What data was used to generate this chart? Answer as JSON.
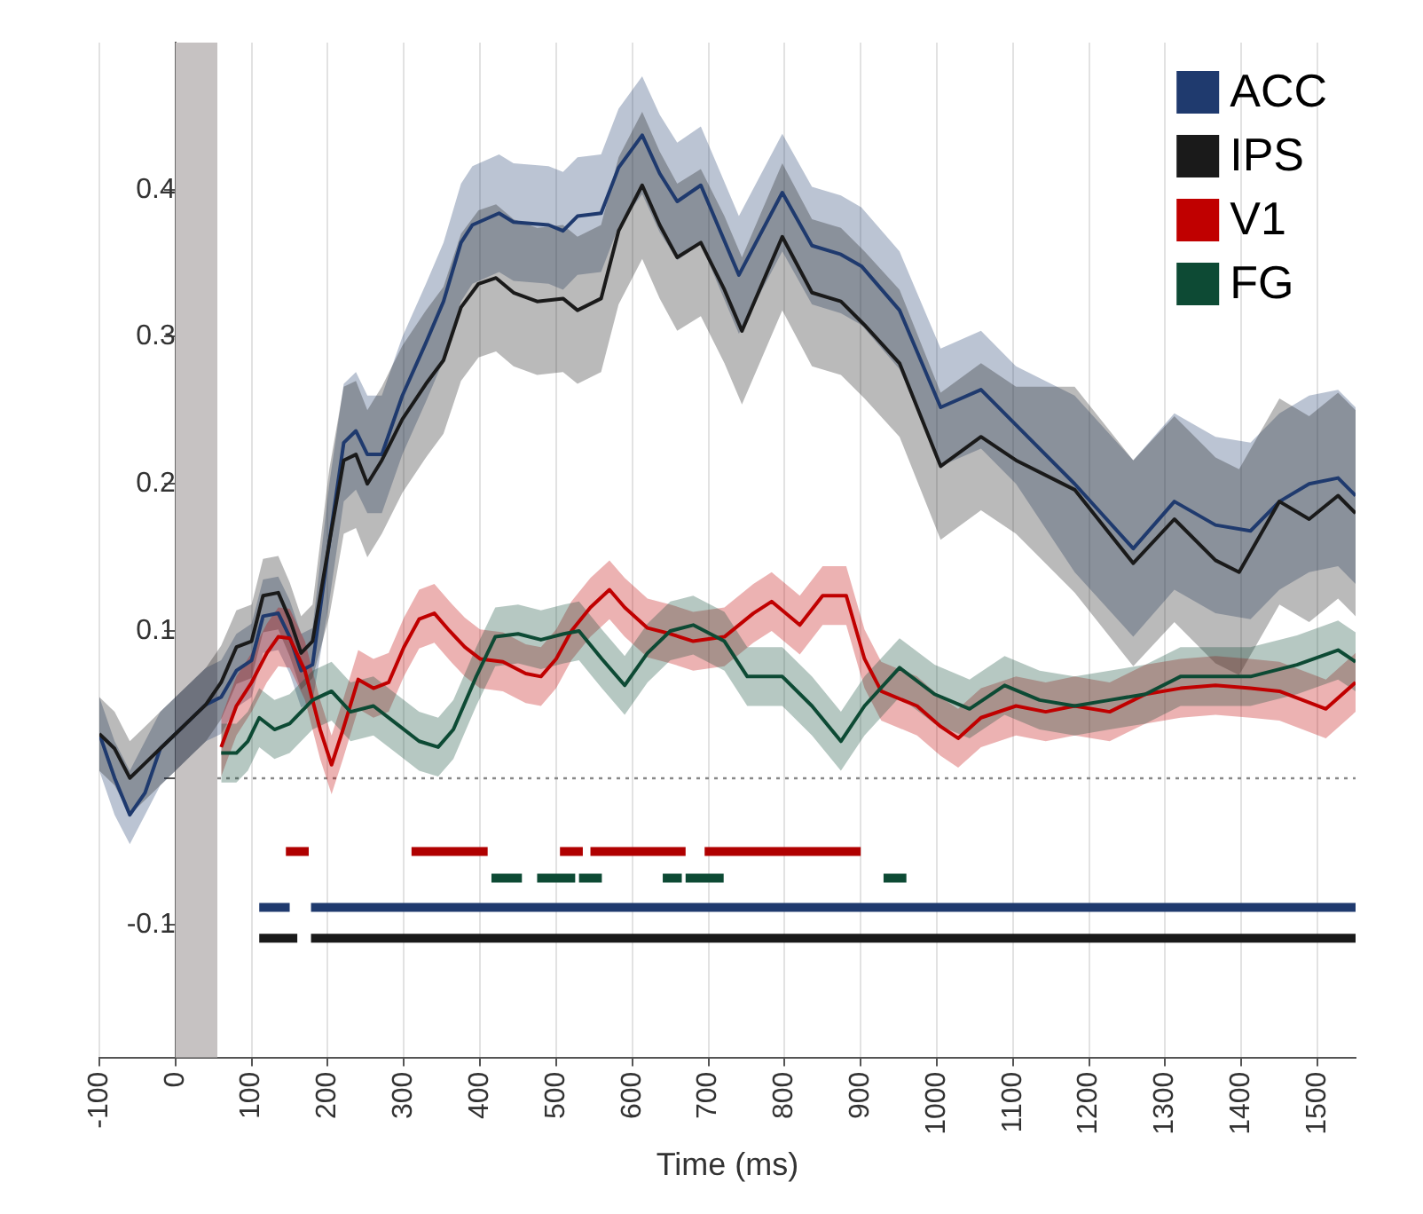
{
  "chart_data": {
    "type": "line",
    "xlabel": "Time (ms)",
    "xlim": [
      -100,
      1550
    ],
    "xticks": [
      -100,
      0,
      100,
      200,
      300,
      400,
      500,
      600,
      700,
      800,
      900,
      1000,
      1100,
      1200,
      1300,
      1400,
      1500
    ],
    "ylim": [
      -0.19,
      0.5
    ],
    "yticks": [
      -0.1,
      {
        "value": 0,
        "label": null
      },
      0.1,
      0.2,
      0.3,
      0.4
    ],
    "grid": "x",
    "legend": "top right",
    "marker": "none",
    "bands": [
      {
        "axis": "x",
        "from": 0,
        "to": 55,
        "color": "#c6c2c2"
      }
    ],
    "ref_lines": [
      {
        "axis": "y",
        "value": 0,
        "color": "#888888",
        "line_style": "dotted"
      }
    ],
    "series": [
      {
        "name": "ACC",
        "color": "#1f3a6e",
        "x": [
          -100,
          -80,
          -60,
          -40,
          -20,
          0,
          20,
          40,
          60,
          80,
          100,
          115,
          135,
          150,
          165,
          180,
          202,
          221,
          237,
          252,
          271,
          298,
          329,
          352,
          375,
          390,
          425,
          444,
          490,
          509,
          528,
          559,
          582,
          613,
          636,
          659,
          690,
          740,
          797,
          836,
          874,
          901,
          951,
          1005,
          1058,
          1104,
          1181,
          1258,
          1312,
          1366,
          1412,
          1450,
          1489,
          1527,
          1550
        ],
        "values": [
          0.03,
          0.0,
          -0.025,
          -0.01,
          0.02,
          0.03,
          0.04,
          0.05,
          0.055,
          0.073,
          0.08,
          0.11,
          0.112,
          0.096,
          0.073,
          0.077,
          0.16,
          0.228,
          0.236,
          0.22,
          0.22,
          0.26,
          0.296,
          0.324,
          0.364,
          0.376,
          0.384,
          0.378,
          0.376,
          0.372,
          0.382,
          0.384,
          0.415,
          0.437,
          0.411,
          0.392,
          0.403,
          0.342,
          0.398,
          0.362,
          0.356,
          0.348,
          0.318,
          0.252,
          0.264,
          0.24,
          0.2,
          0.156,
          0.188,
          0.172,
          0.168,
          0.188,
          0.2,
          0.204,
          0.192
        ],
        "lower": [
          0.005,
          -0.025,
          -0.045,
          -0.025,
          -0.005,
          0.005,
          0.015,
          0.025,
          0.03,
          0.048,
          0.055,
          0.085,
          0.087,
          0.071,
          0.048,
          0.052,
          0.12,
          0.188,
          0.196,
          0.18,
          0.18,
          0.22,
          0.256,
          0.284,
          0.324,
          0.336,
          0.344,
          0.338,
          0.336,
          0.332,
          0.342,
          0.344,
          0.375,
          0.397,
          0.371,
          0.352,
          0.363,
          0.302,
          0.358,
          0.322,
          0.316,
          0.308,
          0.278,
          0.212,
          0.224,
          0.2,
          0.14,
          0.096,
          0.128,
          0.112,
          0.108,
          0.128,
          0.14,
          0.144,
          0.132
        ],
        "upper": [
          0.055,
          0.025,
          0.005,
          0.025,
          0.045,
          0.055,
          0.065,
          0.075,
          0.08,
          0.098,
          0.105,
          0.135,
          0.137,
          0.121,
          0.098,
          0.102,
          0.2,
          0.268,
          0.276,
          0.26,
          0.26,
          0.3,
          0.336,
          0.364,
          0.404,
          0.416,
          0.424,
          0.418,
          0.416,
          0.412,
          0.422,
          0.424,
          0.455,
          0.477,
          0.451,
          0.432,
          0.443,
          0.382,
          0.438,
          0.402,
          0.396,
          0.388,
          0.358,
          0.292,
          0.304,
          0.28,
          0.26,
          0.216,
          0.248,
          0.232,
          0.228,
          0.248,
          0.26,
          0.264,
          0.252
        ]
      },
      {
        "name": "IPS",
        "color": "#1a1a1a",
        "x": [
          -100,
          -80,
          -60,
          -40,
          -20,
          0,
          20,
          40,
          60,
          80,
          100,
          115,
          135,
          150,
          165,
          180,
          202,
          221,
          237,
          252,
          271,
          298,
          329,
          352,
          375,
          398,
          421,
          444,
          475,
          509,
          528,
          559,
          582,
          613,
          636,
          659,
          690,
          721,
          744,
          797,
          836,
          874,
          905,
          951,
          1005,
          1058,
          1104,
          1181,
          1258,
          1312,
          1366,
          1397,
          1450,
          1489,
          1527,
          1550
        ],
        "values": [
          0.03,
          0.02,
          0.0,
          0.01,
          0.02,
          0.03,
          0.04,
          0.05,
          0.065,
          0.089,
          0.093,
          0.124,
          0.126,
          0.108,
          0.085,
          0.093,
          0.16,
          0.216,
          0.22,
          0.2,
          0.216,
          0.244,
          0.268,
          0.284,
          0.32,
          0.336,
          0.34,
          0.33,
          0.324,
          0.326,
          0.318,
          0.326,
          0.372,
          0.403,
          0.376,
          0.354,
          0.364,
          0.332,
          0.304,
          0.368,
          0.33,
          0.324,
          0.308,
          0.282,
          0.212,
          0.232,
          0.216,
          0.196,
          0.146,
          0.176,
          0.148,
          0.14,
          0.188,
          0.176,
          0.192,
          0.18
        ],
        "lower": [
          0.005,
          -0.005,
          -0.025,
          -0.015,
          -0.005,
          0.005,
          0.015,
          0.025,
          0.04,
          0.064,
          0.068,
          0.099,
          0.101,
          0.083,
          0.06,
          0.068,
          0.11,
          0.166,
          0.17,
          0.15,
          0.166,
          0.194,
          0.218,
          0.234,
          0.27,
          0.286,
          0.29,
          0.28,
          0.274,
          0.276,
          0.268,
          0.276,
          0.322,
          0.353,
          0.326,
          0.304,
          0.314,
          0.282,
          0.254,
          0.318,
          0.28,
          0.274,
          0.258,
          0.232,
          0.162,
          0.182,
          0.166,
          0.126,
          0.076,
          0.106,
          0.078,
          0.07,
          0.118,
          0.106,
          0.122,
          0.11
        ],
        "upper": [
          0.055,
          0.045,
          0.025,
          0.035,
          0.045,
          0.055,
          0.065,
          0.075,
          0.09,
          0.114,
          0.118,
          0.149,
          0.151,
          0.133,
          0.11,
          0.118,
          0.21,
          0.266,
          0.27,
          0.25,
          0.266,
          0.294,
          0.318,
          0.334,
          0.37,
          0.386,
          0.39,
          0.38,
          0.374,
          0.376,
          0.368,
          0.376,
          0.422,
          0.453,
          0.426,
          0.404,
          0.414,
          0.382,
          0.354,
          0.418,
          0.38,
          0.374,
          0.358,
          0.332,
          0.262,
          0.282,
          0.266,
          0.266,
          0.216,
          0.246,
          0.218,
          0.21,
          0.258,
          0.246,
          0.262,
          0.25
        ]
      },
      {
        "name": "V1",
        "color": "#c00000",
        "x": [
          60,
          80,
          100,
          120,
          135,
          150,
          170,
          190,
          205,
          220,
          240,
          260,
          280,
          300,
          320,
          340,
          360,
          380,
          400,
          430,
          460,
          480,
          500,
          520,
          545,
          570,
          590,
          620,
          650,
          680,
          721,
          759,
          783,
          820,
          850,
          881,
          905,
          927,
          974,
          1005,
          1028,
          1058,
          1104,
          1143,
          1181,
          1227,
          1274,
          1320,
          1366,
          1412,
          1450,
          1511,
          1550
        ],
        "values": [
          0.021,
          0.049,
          0.065,
          0.085,
          0.096,
          0.095,
          0.073,
          0.033,
          0.009,
          0.033,
          0.067,
          0.061,
          0.065,
          0.089,
          0.108,
          0.112,
          0.1,
          0.089,
          0.081,
          0.079,
          0.071,
          0.069,
          0.081,
          0.1,
          0.116,
          0.128,
          0.116,
          0.102,
          0.098,
          0.093,
          0.096,
          0.112,
          0.12,
          0.104,
          0.124,
          0.124,
          0.081,
          0.059,
          0.049,
          0.035,
          0.027,
          0.041,
          0.049,
          0.045,
          0.049,
          0.045,
          0.057,
          0.061,
          0.063,
          0.061,
          0.059,
          0.047,
          0.065
        ],
        "lower": [
          0.001,
          0.029,
          0.045,
          0.065,
          0.076,
          0.075,
          0.053,
          0.013,
          -0.011,
          0.013,
          0.047,
          0.041,
          0.045,
          0.069,
          0.088,
          0.092,
          0.08,
          0.069,
          0.061,
          0.059,
          0.051,
          0.049,
          0.061,
          0.08,
          0.096,
          0.108,
          0.096,
          0.082,
          0.078,
          0.073,
          0.076,
          0.092,
          0.1,
          0.084,
          0.104,
          0.104,
          0.061,
          0.039,
          0.029,
          0.015,
          0.007,
          0.021,
          0.029,
          0.025,
          0.029,
          0.025,
          0.037,
          0.041,
          0.043,
          0.041,
          0.039,
          0.027,
          0.045
        ],
        "upper": [
          0.041,
          0.069,
          0.085,
          0.105,
          0.116,
          0.115,
          0.093,
          0.053,
          0.029,
          0.053,
          0.087,
          0.081,
          0.085,
          0.109,
          0.128,
          0.132,
          0.12,
          0.109,
          0.101,
          0.099,
          0.091,
          0.089,
          0.101,
          0.12,
          0.136,
          0.148,
          0.136,
          0.122,
          0.118,
          0.113,
          0.116,
          0.132,
          0.14,
          0.124,
          0.144,
          0.144,
          0.101,
          0.079,
          0.069,
          0.055,
          0.047,
          0.061,
          0.069,
          0.065,
          0.069,
          0.065,
          0.077,
          0.081,
          0.083,
          0.081,
          0.079,
          0.067,
          0.085
        ]
      },
      {
        "name": "FG",
        "color": "#0d4a34",
        "x": [
          60,
          80,
          95,
          110,
          130,
          150,
          180,
          205,
          230,
          260,
          290,
          320,
          345,
          365,
          395,
          420,
          450,
          480,
          510,
          530,
          560,
          590,
          620,
          650,
          680,
          721,
          751,
          797,
          836,
          874,
          905,
          951,
          997,
          1043,
          1089,
          1135,
          1181,
          1227,
          1274,
          1320,
          1366,
          1412,
          1473,
          1527,
          1550
        ],
        "values": [
          0.017,
          0.017,
          0.025,
          0.041,
          0.033,
          0.037,
          0.053,
          0.059,
          0.045,
          0.049,
          0.037,
          0.025,
          0.021,
          0.033,
          0.069,
          0.096,
          0.098,
          0.094,
          0.098,
          0.1,
          0.081,
          0.063,
          0.085,
          0.1,
          0.104,
          0.093,
          0.069,
          0.069,
          0.049,
          0.025,
          0.049,
          0.075,
          0.057,
          0.047,
          0.063,
          0.053,
          0.049,
          0.053,
          0.057,
          0.069,
          0.069,
          0.069,
          0.077,
          0.087,
          0.079
        ],
        "lower": [
          -0.003,
          -0.003,
          0.005,
          0.021,
          0.013,
          0.017,
          0.033,
          0.039,
          0.025,
          0.029,
          0.017,
          0.005,
          0.001,
          0.013,
          0.049,
          0.076,
          0.078,
          0.074,
          0.078,
          0.08,
          0.061,
          0.043,
          0.065,
          0.08,
          0.084,
          0.073,
          0.049,
          0.049,
          0.029,
          0.005,
          0.029,
          0.055,
          0.037,
          0.027,
          0.043,
          0.033,
          0.029,
          0.033,
          0.037,
          0.049,
          0.049,
          0.049,
          0.057,
          0.067,
          0.059
        ],
        "upper": [
          0.037,
          0.037,
          0.045,
          0.061,
          0.053,
          0.057,
          0.073,
          0.079,
          0.065,
          0.069,
          0.057,
          0.045,
          0.041,
          0.053,
          0.089,
          0.116,
          0.118,
          0.114,
          0.118,
          0.12,
          0.101,
          0.083,
          0.105,
          0.12,
          0.124,
          0.113,
          0.089,
          0.089,
          0.069,
          0.045,
          0.069,
          0.095,
          0.077,
          0.067,
          0.083,
          0.073,
          0.069,
          0.073,
          0.077,
          0.089,
          0.089,
          0.089,
          0.097,
          0.107,
          0.099
        ]
      },
      {
        "color": "#b00000",
        "x": [
          145,
          175,
          240,
          310,
          410,
          455,
          505,
          535,
          540,
          545,
          670,
          680,
          695,
          900
        ],
        "values": [
          -0.05,
          -0.05,
          null,
          -0.05,
          -0.05,
          null,
          -0.05,
          -0.05,
          null,
          -0.05,
          -0.05,
          null,
          -0.05,
          -0.05
        ]
      },
      {
        "color": "#0d4a34",
        "x": [
          415,
          455,
          460,
          475,
          525,
          527,
          530,
          560,
          600,
          640,
          665,
          667,
          670,
          720,
          825,
          930,
          960
        ],
        "values": [
          -0.068,
          -0.068,
          null,
          -0.068,
          -0.068,
          null,
          -0.068,
          -0.068,
          null,
          -0.068,
          -0.068,
          null,
          -0.068,
          -0.068,
          null,
          -0.068,
          -0.068
        ]
      },
      {
        "color": "#1f3a6e",
        "x": [
          110,
          150,
          165,
          178,
          1550
        ],
        "values": [
          -0.088,
          -0.088,
          null,
          -0.088,
          -0.088
        ]
      },
      {
        "color": "#1a1a1a",
        "x": [
          110,
          160,
          170,
          178,
          1550
        ],
        "values": [
          -0.109,
          -0.109,
          null,
          -0.109,
          -0.109
        ]
      }
    ]
  }
}
